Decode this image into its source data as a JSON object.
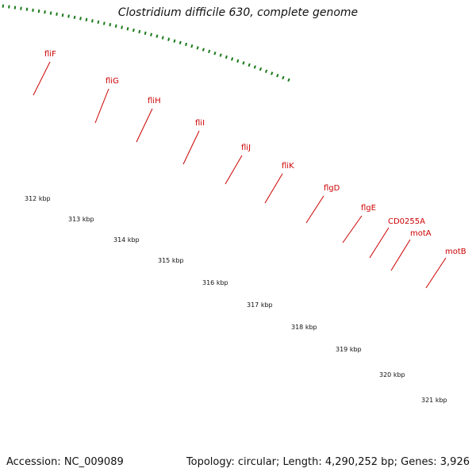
{
  "title": "Clostridium difficile 630, complete genome",
  "footer": {
    "accession": "Accession: NC_009089",
    "summary": "Topology: circular; Length: 4,290,252 bp; Genes: 3,926"
  },
  "colors": {
    "gene_label": "#cc0000",
    "feature_dark_green": "#2e8b2e",
    "feature_light_green": "#b7ea2a",
    "gene_red": "#ff0000",
    "tick": "#1a7a1a",
    "backbone": "#8c8c8c"
  },
  "gene_labels": [
    "fliF",
    "fliG",
    "fliH",
    "fliI",
    "fliJ",
    "fliK",
    "flgD",
    "flgE",
    "CD0255A",
    "motA",
    "motB"
  ],
  "scale_labels": [
    "312 kbp",
    "313 kbp",
    "314 kbp",
    "315 kbp",
    "316 kbp",
    "317 kbp",
    "318 kbp",
    "319 kbp",
    "320 kbp",
    "321 kbp"
  ]
}
